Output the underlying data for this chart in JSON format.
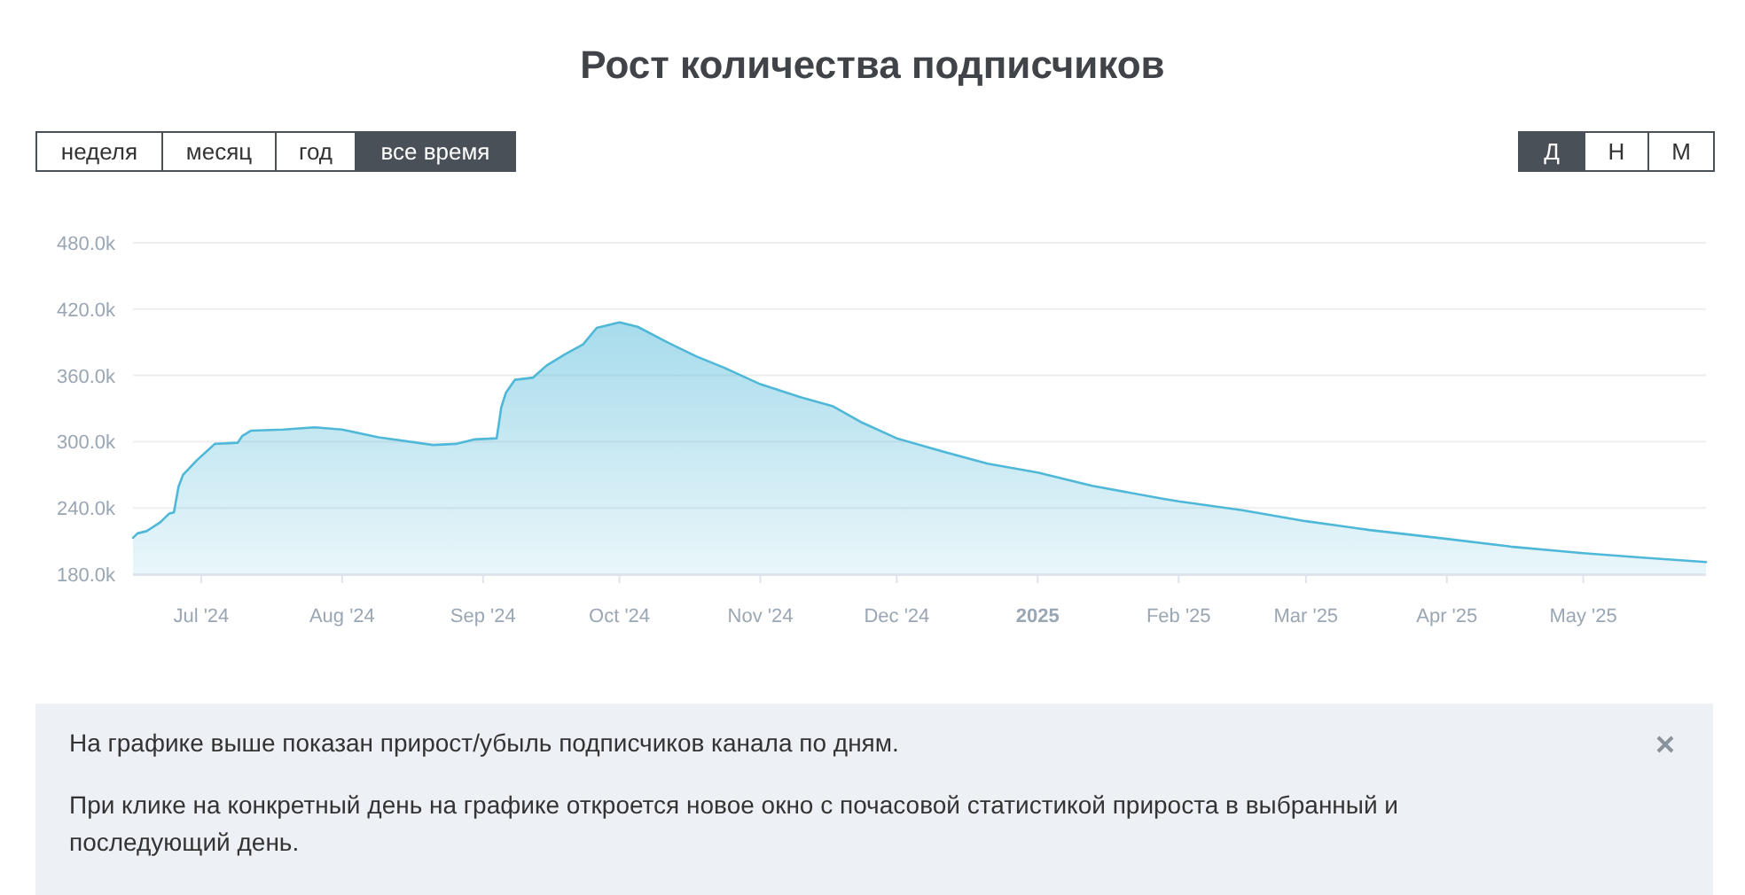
{
  "chart_data": {
    "type": "area",
    "title": "Рост количества подписчиков",
    "x": [
      "2024-06-16",
      "2024-06-17",
      "2024-06-19",
      "2024-06-22",
      "2024-06-24",
      "2024-06-25",
      "2024-06-26",
      "2024-06-27",
      "2024-06-30",
      "2024-07-04",
      "2024-07-09",
      "2024-07-10",
      "2024-07-12",
      "2024-07-19",
      "2024-07-26",
      "2024-08-01",
      "2024-08-09",
      "2024-08-21",
      "2024-08-26",
      "2024-08-30",
      "2024-09-04",
      "2024-09-05",
      "2024-09-06",
      "2024-09-08",
      "2024-09-12",
      "2024-09-15",
      "2024-09-19",
      "2024-09-23",
      "2024-09-26",
      "2024-10-01",
      "2024-10-05",
      "2024-10-11",
      "2024-10-18",
      "2024-10-24",
      "2024-11-01",
      "2024-11-10",
      "2024-11-17",
      "2024-11-23",
      "2024-12-01",
      "2024-12-12",
      "2024-12-21",
      "2025-01-01",
      "2025-01-13",
      "2025-01-29",
      "2025-02-01",
      "2025-02-15",
      "2025-03-01",
      "2025-03-15",
      "2025-04-01",
      "2025-04-15",
      "2025-05-01",
      "2025-05-14",
      "2025-05-28"
    ],
    "series": [
      {
        "color": "#4fb8d8",
        "values": [
          213000,
          217000,
          219000,
          227000,
          235000,
          236000,
          259000,
          270000,
          283000,
          298000,
          299000,
          305000,
          310000,
          311000,
          313000,
          311000,
          304000,
          297000,
          298000,
          302000,
          303000,
          331000,
          344000,
          356000,
          358000,
          369000,
          379000,
          388000,
          403000,
          408000,
          404000,
          391000,
          377000,
          367000,
          352000,
          340000,
          332000,
          318000,
          303000,
          290000,
          280000,
          272000,
          260000,
          248000,
          246000,
          238000,
          228000,
          220000,
          212000,
          205000,
          199000,
          195000,
          191000
        ]
      }
    ],
    "xlim": [
      "2024-06-16",
      "2025-05-28"
    ],
    "xticks": [
      {
        "value": "2024-07-01",
        "label": "Jul '24"
      },
      {
        "value": "2024-08-01",
        "label": "Aug '24"
      },
      {
        "value": "2024-09-01",
        "label": "Sep '24"
      },
      {
        "value": "2024-10-01",
        "label": "Oct '24"
      },
      {
        "value": "2024-11-01",
        "label": "Nov '24"
      },
      {
        "value": "2024-12-01",
        "label": "Dec '24"
      },
      {
        "value": "2025-01-01",
        "label": "2025"
      },
      {
        "value": "2025-02-01",
        "label": "Feb '25"
      },
      {
        "value": "2025-03-01",
        "label": "Mar '25"
      },
      {
        "value": "2025-04-01",
        "label": "Apr '25"
      },
      {
        "value": "2025-05-01",
        "label": "May '25"
      }
    ],
    "ylim": [
      180000,
      480000
    ],
    "yticks": [
      {
        "value": 180000,
        "label": "180.0k"
      },
      {
        "value": 240000,
        "label": "240.0k"
      },
      {
        "value": 300000,
        "label": "300.0k"
      },
      {
        "value": 360000,
        "label": "360.0k"
      },
      {
        "value": 420000,
        "label": "420.0k"
      },
      {
        "value": 480000,
        "label": "480.0k"
      }
    ],
    "grid": "y",
    "annotations": [
      "неделя",
      "месяц",
      "год",
      "все время",
      "Д",
      "Н",
      "М",
      "На графике выше показан прирост/убыль подписчиков канала по дням.",
      "При клике на конкретный день на графике откроется новое окно с почасовой статистикой прироста в выбранный и последующий день."
    ]
  }
}
